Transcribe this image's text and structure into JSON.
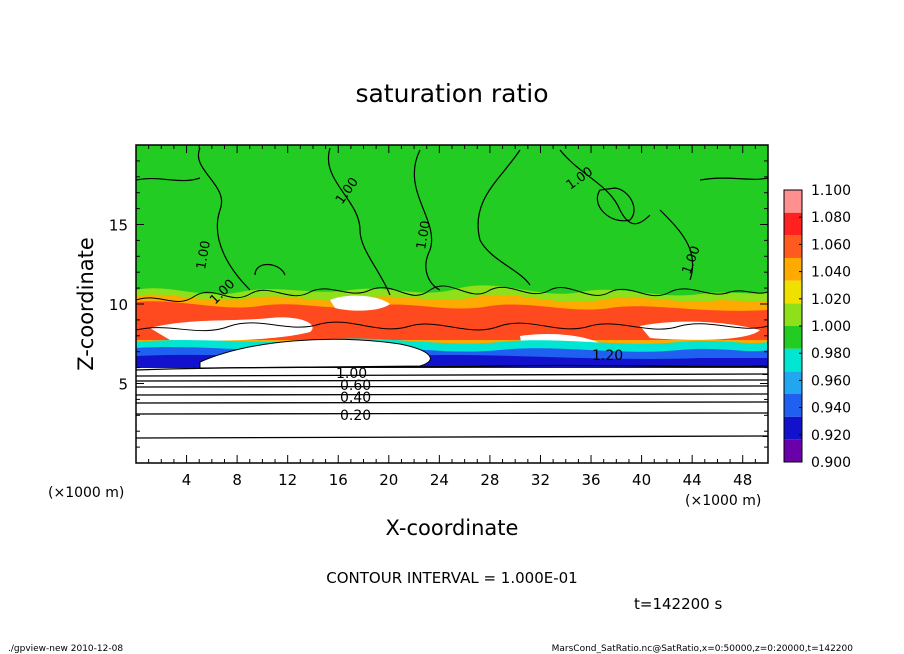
{
  "chart_data": {
    "type": "heatmap",
    "title": "saturation ratio",
    "xlabel": "X-coordinate",
    "ylabel": "Z-coordinate",
    "x_unit": "(×1000 m)",
    "y_unit": "(×1000 m)",
    "xlim": [
      0,
      50
    ],
    "ylim": [
      0,
      20
    ],
    "x_ticks": [
      "4",
      "8",
      "12",
      "16",
      "20",
      "24",
      "28",
      "32",
      "36",
      "40",
      "44",
      "48"
    ],
    "y_ticks": [
      "5",
      "10",
      "15"
    ],
    "colorbar": {
      "levels": [
        "0.900",
        "0.920",
        "0.940",
        "0.960",
        "0.980",
        "1.000",
        "1.020",
        "1.040",
        "1.060",
        "1.080",
        "1.100"
      ],
      "colors": [
        "#6a00aa",
        "#1212cc",
        "#2060f0",
        "#22a6f0",
        "#00e6d2",
        "#22cc22",
        "#8ee01a",
        "#f0e000",
        "#ffaa00",
        "#ff5a20",
        "#ff2020",
        "#ff9090"
      ]
    },
    "contour_labels": [
      "1.00",
      "1.00",
      "1.00",
      "1.00",
      "1.00",
      "1.00",
      "1.00",
      "0.60",
      "0.40",
      "0.20",
      "1.20"
    ],
    "contour_interval": "CONTOUR INTERVAL = 1.000E-01",
    "time_label": "t=142200 s",
    "footer_left": "./gpview-new  2010-12-08",
    "footer_right": "MarsCond_SatRatio.nc@SatRatio,x=0:50000,z=0:20000,t=142200"
  }
}
